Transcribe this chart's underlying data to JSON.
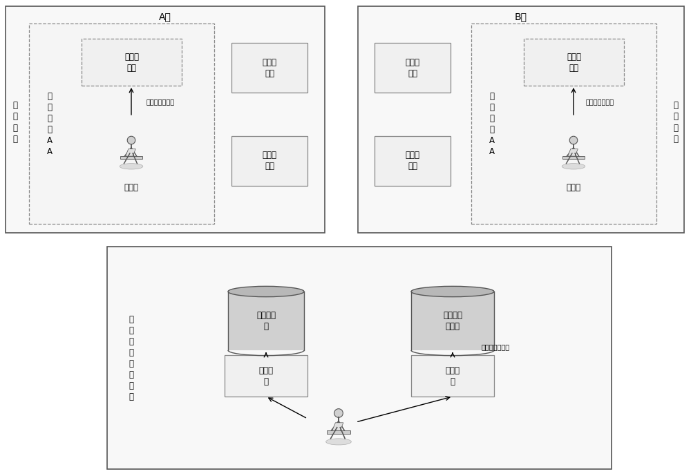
{
  "bg_color": "#ffffff",
  "domain_A_title": "A域",
  "domain_B_title": "B域",
  "anon_cert_label": "匿\n名\n认\n证",
  "attr_auth_label": "属\n性\n权\n威\nA\nA",
  "cert_lib_label": "属性证\n书库",
  "publish_label_A": "发布、撤销证书",
  "publish_label_B": "发布、撤销证书",
  "admin_label": "管理员",
  "service_provider_label": "服务提\n供方",
  "client_user_label": "客户端\n用户",
  "attr_def_lib_label": "属性定义\n库",
  "pub_key_cert_db_label": "公钥证书\n数据库",
  "attr_def_label": "属性定\n义",
  "cert_service_label": "证书服\n务",
  "store_revoke_label": "存储、撤销证书",
  "unified_def_label": "属\n性\n统\n一\n定\n义\n机\n构",
  "font_size_title": 10,
  "font_size_label": 8.5,
  "font_size_small": 7
}
